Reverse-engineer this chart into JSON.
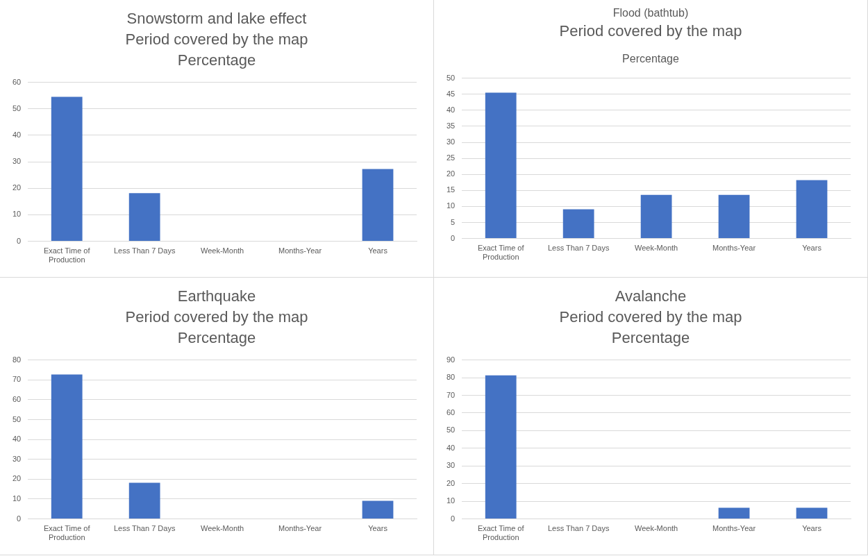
{
  "chart_data": [
    {
      "type": "bar",
      "title": "Snowstorm and lake effect\nPeriod covered by the map\nPercentage",
      "categories": [
        "Exact Time of Production",
        "Less Than 7 Days",
        "Week-Month",
        "Months-Year",
        "Years"
      ],
      "values": [
        54.5,
        18.2,
        0,
        0,
        27.3
      ],
      "color": "#4472c4",
      "ylim": [
        0,
        60
      ],
      "yticks": [
        0,
        10,
        20,
        30,
        40,
        50,
        60
      ],
      "grid": "y"
    },
    {
      "type": "bar",
      "title": "Flood (bathtub)",
      "subtitle": "Period covered by the map",
      "annotations": [
        "Percentage"
      ],
      "categories": [
        "Exact Time of Production",
        "Less Than 7 Days",
        "Week-Month",
        "Months-Year",
        "Years"
      ],
      "values": [
        45.5,
        9.1,
        13.6,
        13.6,
        18.2
      ],
      "color": "#4472c4",
      "ylim": [
        0,
        50
      ],
      "yticks": [
        0,
        5,
        10,
        15,
        20,
        25,
        30,
        35,
        40,
        45,
        50
      ],
      "grid": "y"
    },
    {
      "type": "bar",
      "title": "Earthquake\nPeriod covered by the map\nPercentage",
      "categories": [
        "Exact Time of Production",
        "Less Than 7 Days",
        "Week-Month",
        "Months-Year",
        "Years"
      ],
      "values": [
        72.7,
        18.2,
        0,
        0,
        9.1
      ],
      "color": "#4472c4",
      "ylim": [
        0,
        80
      ],
      "yticks": [
        0,
        10,
        20,
        30,
        40,
        50,
        60,
        70,
        80
      ],
      "grid": "y"
    },
    {
      "type": "bar",
      "title": "Avalanche\nPeriod covered by the map\nPercentage",
      "categories": [
        "Exact Time of Production",
        "Less Than 7 Days",
        "Week-Month",
        "Months-Year",
        "Years"
      ],
      "values": [
        81.3,
        0,
        0,
        6.3,
        6.3
      ],
      "color": "#4472c4",
      "ylim": [
        0,
        90
      ],
      "yticks": [
        0,
        10,
        20,
        30,
        40,
        50,
        60,
        70,
        80,
        90
      ],
      "grid": "y"
    }
  ]
}
